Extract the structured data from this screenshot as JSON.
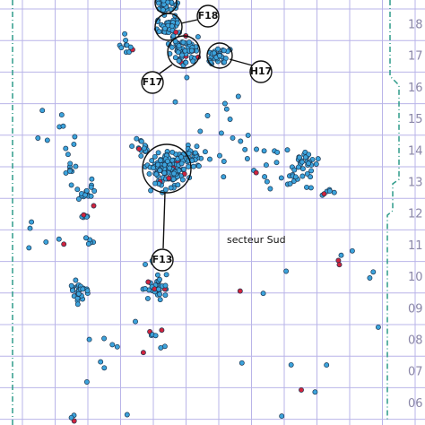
{
  "map": {
    "feature_labels": [
      "F18",
      "F17",
      "H17",
      "F13"
    ],
    "sector_label": "secteur Sud",
    "grid_labels": [
      "18",
      "17",
      "16",
      "15",
      "14",
      "13",
      "12",
      "11",
      "10",
      "09",
      "08",
      "07",
      "06"
    ]
  }
}
